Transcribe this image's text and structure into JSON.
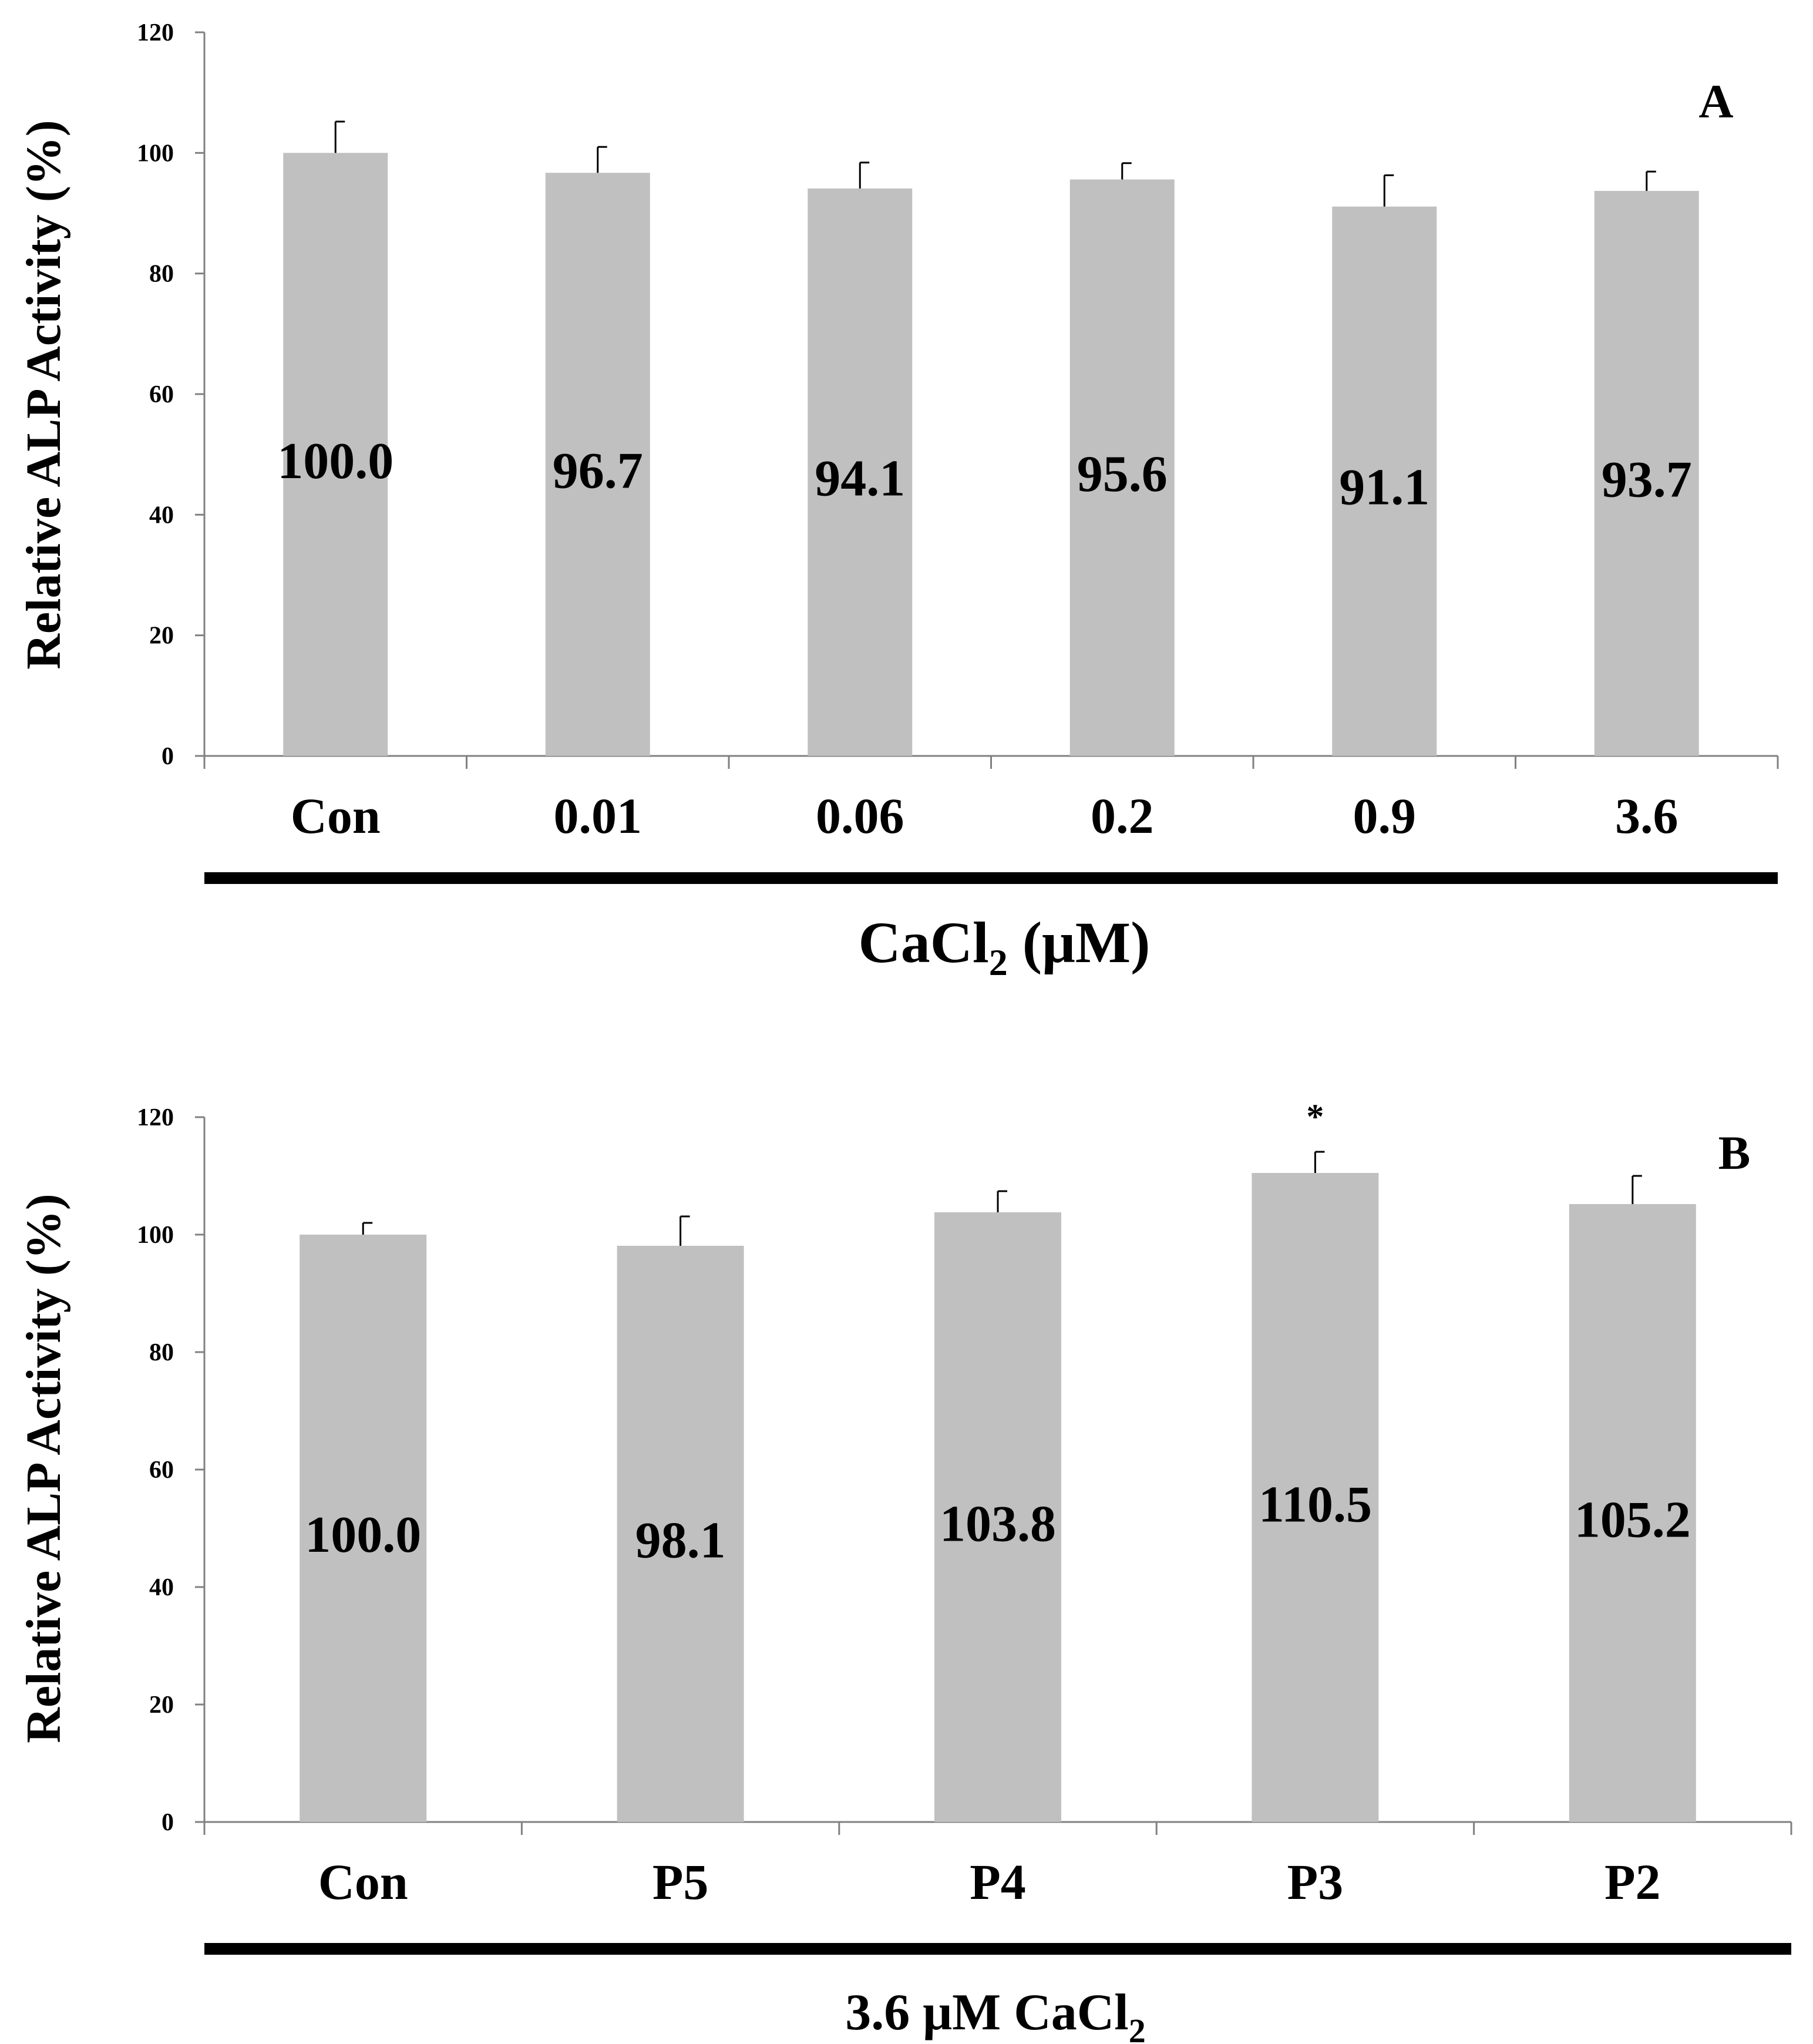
{
  "colors": {
    "bar": "#C0C0C0",
    "axis": "#808080",
    "text": "#000000",
    "error_bar": "#000000"
  },
  "chart_data": [
    {
      "type": "bar",
      "panel_label": "A",
      "ylabel": "Relative ALP Activity (%)",
      "xlabel_main": "CaCl",
      "xlabel_sub": "2",
      "xlabel_tail": " (μM)",
      "ylim": [
        0,
        120
      ],
      "yticks": [
        "0",
        "20",
        "40",
        "60",
        "80",
        "100",
        "120"
      ],
      "categories": [
        "Con",
        "0.01",
        "0.06",
        "0.2",
        "0.9",
        "3.6"
      ],
      "values": [
        100.0,
        96.7,
        94.1,
        95.6,
        91.1,
        93.7
      ],
      "value_labels": [
        "100.0",
        "96.7",
        "94.1",
        "95.6",
        "91.1",
        "93.7"
      ],
      "errors": [
        5.2,
        4.3,
        4.3,
        2.7,
        5.2,
        3.2
      ],
      "significance": [
        "",
        "",
        "",
        "",
        "",
        ""
      ]
    },
    {
      "type": "bar",
      "panel_label": "B",
      "ylabel": "Relative ALP Activity (%)",
      "xlabel_main": "3.6 μM CaCl",
      "xlabel_sub": "2",
      "xlabel_tail": "",
      "ylim": [
        0,
        120
      ],
      "yticks": [
        "0",
        "20",
        "40",
        "60",
        "80",
        "100",
        "120"
      ],
      "categories": [
        "Con",
        "P5",
        "P4",
        "P3",
        "P2"
      ],
      "values": [
        100.0,
        98.1,
        103.8,
        110.5,
        105.2
      ],
      "value_labels": [
        "100.0",
        "98.1",
        "103.8",
        "110.5",
        "105.2"
      ],
      "errors": [
        2.0,
        5.0,
        3.6,
        3.6,
        4.8
      ],
      "significance": [
        "",
        "",
        "",
        "*",
        ""
      ]
    }
  ]
}
